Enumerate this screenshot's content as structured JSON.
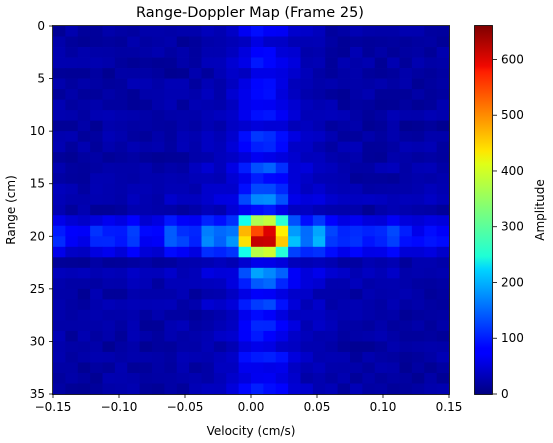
{
  "chart_data": {
    "type": "heatmap",
    "title": "Range-Doppler Map (Frame 25)",
    "xlabel": "Velocity (cm/s)",
    "ylabel": "Range (cm)",
    "xlim": [
      -0.15,
      0.15
    ],
    "ylim": [
      35,
      0
    ],
    "xticks": [
      "−0.15",
      "−0.10",
      "−0.05",
      "0.00",
      "0.05",
      "0.10",
      "0.15"
    ],
    "xtick_values": [
      -0.15,
      -0.1,
      -0.05,
      0.0,
      0.05,
      0.1,
      0.15
    ],
    "yticks": [
      "0",
      "5",
      "10",
      "15",
      "20",
      "25",
      "30",
      "35"
    ],
    "ytick_values": [
      0,
      5,
      10,
      15,
      20,
      25,
      30,
      35
    ],
    "colormap": "jet",
    "colorbar": {
      "label": "Amplitude",
      "range": [
        0,
        660
      ],
      "ticks": [
        "0",
        "100",
        "200",
        "300",
        "400",
        "500",
        "600"
      ],
      "tick_values": [
        0,
        100,
        200,
        300,
        400,
        500,
        600
      ]
    },
    "bins": {
      "velocity_count": 32,
      "range_count": 35,
      "peak": {
        "velocity": 0.01,
        "range": 20,
        "amplitude": 560
      },
      "peak_row_values": [
        {
          "velocity": -0.015,
          "amplitude": 330
        },
        {
          "velocity": -0.005,
          "amplitude": 460
        },
        {
          "velocity": 0.005,
          "amplitude": 530
        },
        {
          "velocity": 0.015,
          "amplitude": 560
        },
        {
          "velocity": 0.025,
          "amplitude": 360
        },
        {
          "velocity": 0.035,
          "amplitude": 250
        }
      ]
    }
  }
}
